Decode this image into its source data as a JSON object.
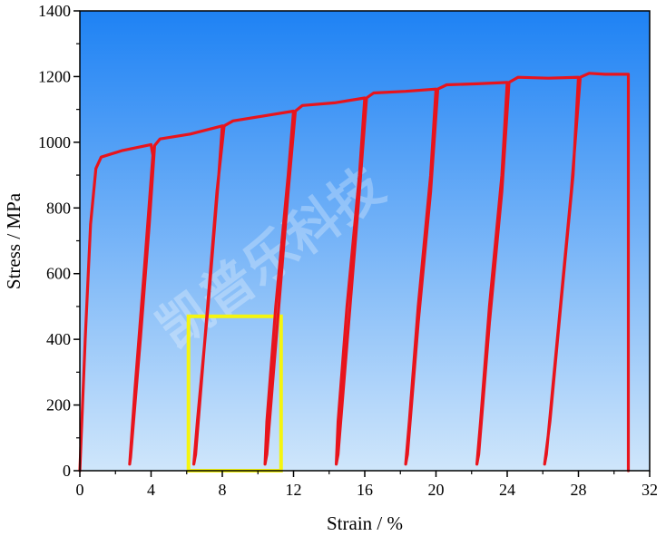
{
  "chart_data": {
    "type": "line",
    "title": "",
    "xlabel": "Strain / %",
    "ylabel": "Stress / MPa",
    "xlim": [
      0,
      32
    ],
    "ylim": [
      0,
      1400
    ],
    "xticks": [
      0,
      4,
      8,
      12,
      16,
      20,
      24,
      28,
      32
    ],
    "yticks": [
      0,
      200,
      400,
      600,
      800,
      1000,
      1200,
      1400
    ],
    "grid": false,
    "legend": "none",
    "line_color": "#e8141c",
    "background_gradient": [
      "#1e82f4",
      "#cfe6fb"
    ],
    "highlight_box_color": "#f5f50f",
    "highlight_box": {
      "x": [
        6.1,
        11.3
      ],
      "y": [
        0,
        470
      ]
    },
    "watermark": "凯普乐科技",
    "series": [
      {
        "values": [
          [
            0,
            0
          ],
          [
            0.3,
            400
          ],
          [
            0.6,
            750
          ],
          [
            0.9,
            920
          ],
          [
            1.2,
            955
          ],
          [
            2.4,
            975
          ],
          [
            4.0,
            993
          ],
          [
            4.1,
            960
          ],
          [
            3.6,
            600
          ],
          [
            3.1,
            250
          ],
          [
            2.8,
            20
          ],
          [
            2.85,
            40
          ],
          [
            3.4,
            400
          ],
          [
            3.9,
            750
          ],
          [
            4.2,
            990
          ],
          [
            4.5,
            1010
          ],
          [
            6.2,
            1025
          ],
          [
            8.0,
            1050
          ],
          [
            7.8,
            900
          ],
          [
            7.2,
            500
          ],
          [
            6.6,
            150
          ],
          [
            6.4,
            20
          ],
          [
            6.5,
            50
          ],
          [
            7.1,
            450
          ],
          [
            7.7,
            850
          ],
          [
            8.1,
            1050
          ],
          [
            8.6,
            1065
          ],
          [
            10.3,
            1080
          ],
          [
            12.0,
            1095
          ],
          [
            11.7,
            900
          ],
          [
            11.0,
            500
          ],
          [
            10.5,
            150
          ],
          [
            10.4,
            20
          ],
          [
            10.5,
            50
          ],
          [
            11.1,
            450
          ],
          [
            11.7,
            850
          ],
          [
            12.1,
            1095
          ],
          [
            12.5,
            1112
          ],
          [
            14.3,
            1120
          ],
          [
            16.0,
            1135
          ],
          [
            15.7,
            900
          ],
          [
            15.0,
            500
          ],
          [
            14.5,
            150
          ],
          [
            14.4,
            20
          ],
          [
            14.5,
            50
          ],
          [
            15.1,
            450
          ],
          [
            15.7,
            850
          ],
          [
            16.1,
            1135
          ],
          [
            16.5,
            1150
          ],
          [
            18.3,
            1155
          ],
          [
            20.0,
            1162
          ],
          [
            19.7,
            900
          ],
          [
            19.0,
            500
          ],
          [
            18.5,
            150
          ],
          [
            18.3,
            20
          ],
          [
            18.4,
            50
          ],
          [
            19.0,
            450
          ],
          [
            19.7,
            850
          ],
          [
            20.1,
            1162
          ],
          [
            20.6,
            1175
          ],
          [
            22.3,
            1178
          ],
          [
            24.0,
            1182
          ],
          [
            23.7,
            900
          ],
          [
            23.0,
            500
          ],
          [
            22.5,
            150
          ],
          [
            22.3,
            20
          ],
          [
            22.4,
            50
          ],
          [
            23.0,
            450
          ],
          [
            23.7,
            850
          ],
          [
            24.1,
            1182
          ],
          [
            24.6,
            1198
          ],
          [
            26.3,
            1195
          ],
          [
            28.0,
            1198
          ],
          [
            27.7,
            900
          ],
          [
            27.0,
            500
          ],
          [
            26.4,
            150
          ],
          [
            26.1,
            20
          ],
          [
            26.2,
            50
          ],
          [
            26.9,
            450
          ],
          [
            27.6,
            850
          ],
          [
            28.1,
            1198
          ],
          [
            28.6,
            1210
          ],
          [
            29.5,
            1207
          ],
          [
            30.8,
            1207
          ],
          [
            30.8,
            0
          ]
        ]
      }
    ]
  }
}
